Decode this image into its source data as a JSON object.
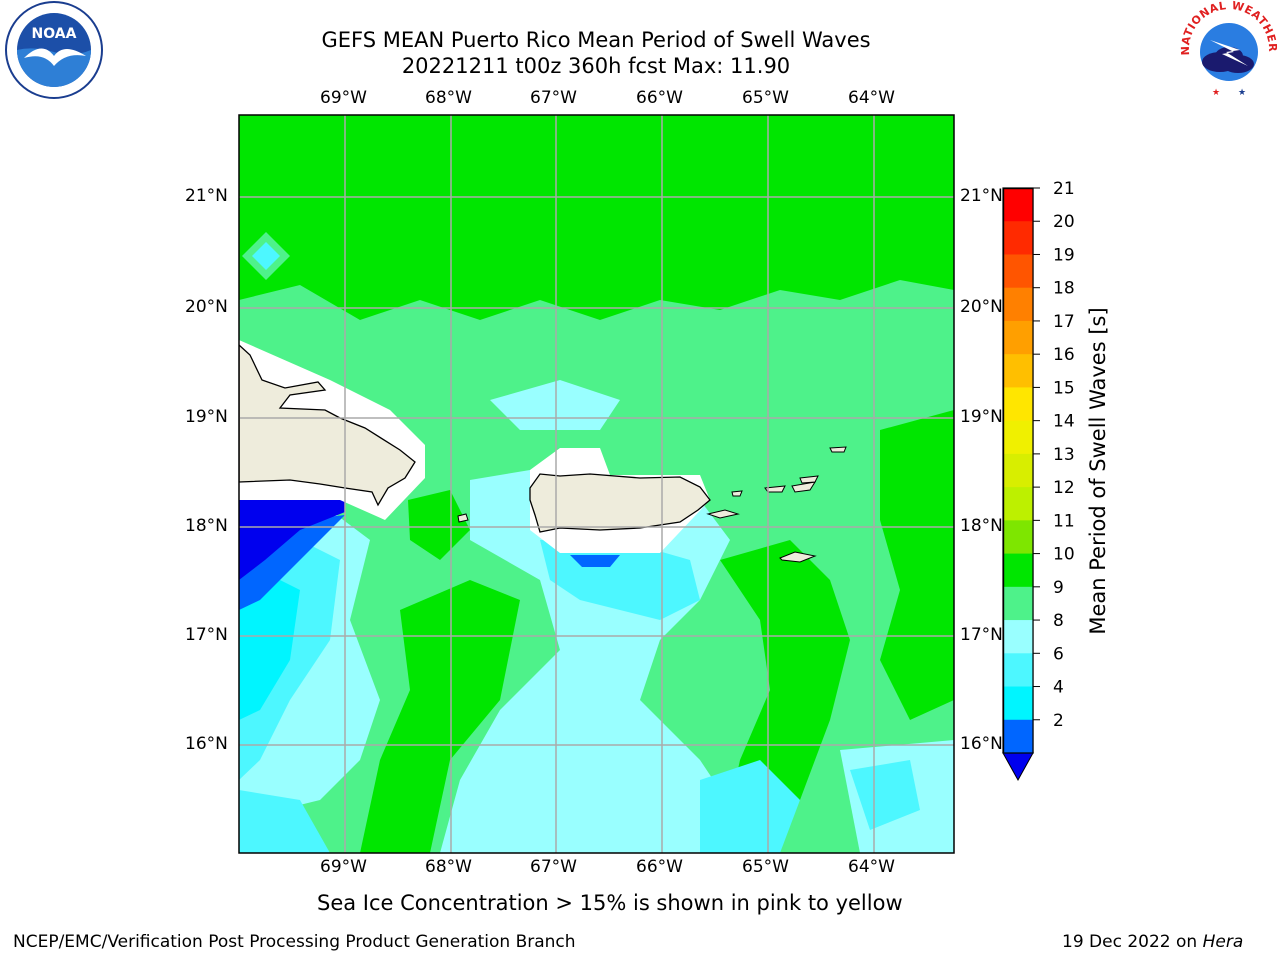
{
  "header": {
    "title_line1": "GEFS MEAN Puerto Rico Mean Period of Swell Waves",
    "title_line2": "20221211 t00z 360h fcst   Max: 11.90"
  },
  "logos": {
    "left": {
      "icon": "noaa-logo-icon",
      "text": "NOAA",
      "ring_text": "NATIONAL OCEANIC AND ATMOSPHERIC ADMINISTRATION · U.S. DEPARTMENT OF COMMERCE"
    },
    "right": {
      "icon": "nws-logo-icon",
      "ring_text": "NATIONAL WEATHER SERVICE"
    }
  },
  "map": {
    "lon_labels": [
      "69°W",
      "68°W",
      "67°W",
      "66°W",
      "65°W",
      "64°W"
    ],
    "lat_labels": [
      "21°N",
      "20°N",
      "19°N",
      "18°N",
      "17°N",
      "16°N"
    ],
    "colors": {
      "ocean_green": "#00e600",
      "ocean_medium": "#4ef28a",
      "ocean_light_cyan": "#99ffff",
      "ocean_cyan": "#4df7ff",
      "ocean_bright_cyan": "#00f5ff",
      "ocean_blue": "#0066ff",
      "ocean_dark_blue": "#0000ee",
      "land": "#eeecdc",
      "grid": "#aaaaaa"
    }
  },
  "colorbar": {
    "label": "Mean Period of Swell Waves [s]",
    "ticks": [
      "21",
      "20",
      "19",
      "18",
      "17",
      "16",
      "15",
      "14",
      "13",
      "12",
      "11",
      "10",
      "9",
      "8",
      "6",
      "4",
      "2"
    ],
    "colors": [
      "#ff0000",
      "#ff2a00",
      "#ff5500",
      "#ff8000",
      "#ff9f00",
      "#ffbf00",
      "#ffe600",
      "#f0f000",
      "#d8ee00",
      "#bdf000",
      "#7ee600",
      "#00e600",
      "#4ef28a",
      "#99ffff",
      "#4df7ff",
      "#00f5ff",
      "#0066ff"
    ],
    "under_color": "#0000ee"
  },
  "footer": {
    "note": "Sea Ice Concentration > 15% is shown in pink to yellow",
    "left": "NCEP/EMC/Verification Post Processing Product Generation Branch",
    "right_prefix": "19 Dec 2022 on ",
    "right_host": "Hera"
  }
}
